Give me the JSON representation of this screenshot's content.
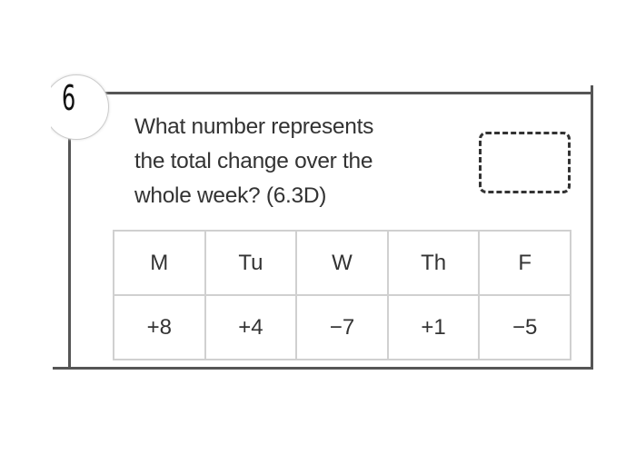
{
  "question_number": "6",
  "question_lines": [
    "What number represents",
    "the total change over the",
    "whole week? (6.3D)"
  ],
  "table": {
    "headers": [
      "M",
      "Tu",
      "W",
      "Th",
      "F"
    ],
    "values": [
      "+8",
      "+4",
      "−7",
      "+1",
      "−5"
    ]
  }
}
